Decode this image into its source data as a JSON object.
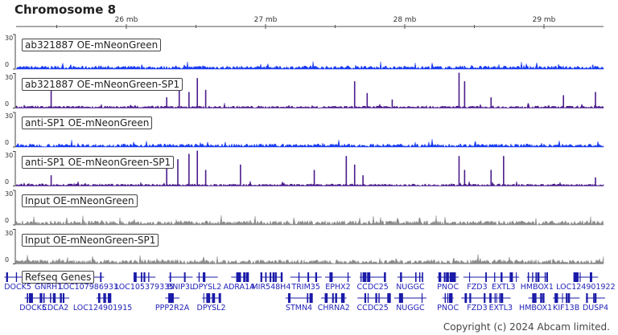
{
  "title": "Chromosome 8",
  "axis": {
    "ticks": [
      {
        "mb": 26,
        "label": "26 mb"
      },
      {
        "mb": 27,
        "label": "27 mb"
      },
      {
        "mb": 28,
        "label": "28 mb"
      },
      {
        "mb": 29,
        "label": "29 mb"
      }
    ],
    "range_mb": [
      25.21,
      29.43
    ]
  },
  "tracks": [
    {
      "name": "ab321887 OE-mNeonGreen",
      "ymax": "30",
      "ymin": "0",
      "color": "#1a3cf0",
      "noise": 3,
      "peaks": [
        [
          25.6,
          4
        ],
        [
          26.55,
          3
        ],
        [
          28.43,
          3
        ],
        [
          29.35,
          4
        ]
      ]
    },
    {
      "name": "ab321887 OE-mNeonGreen-SP1",
      "ymax": "30",
      "ymin": "0",
      "color": "#4a1c8c",
      "noise": 2,
      "peaks": [
        [
          25.46,
          17
        ],
        [
          26.29,
          10
        ],
        [
          26.38,
          17
        ],
        [
          26.45,
          15
        ],
        [
          26.51,
          28
        ],
        [
          26.57,
          17
        ],
        [
          27.64,
          25
        ],
        [
          27.73,
          14
        ],
        [
          27.91,
          8
        ],
        [
          28.39,
          33
        ],
        [
          28.43,
          25
        ],
        [
          28.62,
          10
        ],
        [
          29.14,
          12
        ],
        [
          29.37,
          15
        ]
      ]
    },
    {
      "name": "anti-SP1 OE-mNeonGreen",
      "ymax": "30",
      "ymin": "0",
      "color": "#1a3cf0",
      "noise": 3,
      "peaks": [
        [
          26.5,
          3
        ],
        [
          28.4,
          3
        ]
      ]
    },
    {
      "name": "anti-SP1 OE-mNeonGreen-SP1",
      "ymax": "30",
      "ymin": "0",
      "color": "#4a1c8c",
      "noise": 2,
      "peaks": [
        [
          25.46,
          10
        ],
        [
          26.29,
          25
        ],
        [
          26.37,
          25
        ],
        [
          26.45,
          30
        ],
        [
          26.51,
          33
        ],
        [
          26.57,
          15
        ],
        [
          26.82,
          20
        ],
        [
          27.35,
          15
        ],
        [
          27.58,
          28
        ],
        [
          27.64,
          20
        ],
        [
          27.7,
          10
        ],
        [
          28.39,
          28
        ],
        [
          28.43,
          15
        ],
        [
          28.62,
          15
        ],
        [
          28.71,
          28
        ],
        [
          29.37,
          8
        ]
      ]
    },
    {
      "name": "Input OE-mNeonGreen",
      "ymax": "30",
      "ymin": "0",
      "color": "#8c8c8c",
      "noise": 4,
      "peaks": []
    },
    {
      "name": "Input OE-mNeonGreen-SP1",
      "ymax": "30",
      "ymin": "0",
      "color": "#8c8c8c",
      "noise": 4,
      "peaks": []
    }
  ],
  "genes_label": "Refseq Genes",
  "gene_color": "#1a1aa8",
  "genes": [
    {
      "name": "DOCK5",
      "mb": 25.22,
      "row": 0
    },
    {
      "name": "GNRH1",
      "mb": 25.44,
      "row": 0
    },
    {
      "name": "LOC107986933",
      "mb": 25.73,
      "row": 0
    },
    {
      "name": "LOC105379335",
      "mb": 26.13,
      "row": 0
    },
    {
      "name": "BNIP3L",
      "mb": 26.39,
      "row": 0
    },
    {
      "name": "DPYSL2",
      "mb": 26.58,
      "row": 0
    },
    {
      "name": "ADRA1A",
      "mb": 26.81,
      "row": 0
    },
    {
      "name": "MIR548H4",
      "mb": 27.04,
      "row": 0
    },
    {
      "name": "TRIM35",
      "mb": 27.29,
      "row": 0
    },
    {
      "name": "EPHX2",
      "mb": 27.52,
      "row": 0
    },
    {
      "name": "CCDC25",
      "mb": 27.77,
      "row": 0
    },
    {
      "name": "NUGGC",
      "mb": 28.04,
      "row": 0
    },
    {
      "name": "PNOC",
      "mb": 28.31,
      "row": 0
    },
    {
      "name": "FZD3",
      "mb": 28.52,
      "row": 0
    },
    {
      "name": "EXTL3",
      "mb": 28.71,
      "row": 0
    },
    {
      "name": "HMBOX1",
      "mb": 28.95,
      "row": 0
    },
    {
      "name": "LOC124901922",
      "mb": 29.3,
      "row": 0
    },
    {
      "name": "DOCK5",
      "mb": 25.33,
      "row": 1
    },
    {
      "name": "CDCA2",
      "mb": 25.49,
      "row": 1
    },
    {
      "name": "LOC124901915",
      "mb": 25.83,
      "row": 1
    },
    {
      "name": "PPP2R2A",
      "mb": 26.33,
      "row": 1
    },
    {
      "name": "DPYSL2",
      "mb": 26.61,
      "row": 1
    },
    {
      "name": "STMN4",
      "mb": 27.24,
      "row": 1
    },
    {
      "name": "CHRNA2",
      "mb": 27.49,
      "row": 1
    },
    {
      "name": "CCDC25",
      "mb": 27.77,
      "row": 1
    },
    {
      "name": "NUGGC",
      "mb": 28.04,
      "row": 1
    },
    {
      "name": "PNOC",
      "mb": 28.31,
      "row": 1
    },
    {
      "name": "FZD3",
      "mb": 28.52,
      "row": 1
    },
    {
      "name": "EXTL3",
      "mb": 28.69,
      "row": 1
    },
    {
      "name": "HMBOX1",
      "mb": 28.94,
      "row": 1
    },
    {
      "name": "KIF13B",
      "mb": 29.16,
      "row": 1
    },
    {
      "name": "DUSP4",
      "mb": 29.37,
      "row": 1
    }
  ],
  "footer": "Copyright (c) 2024 Abcam limited."
}
